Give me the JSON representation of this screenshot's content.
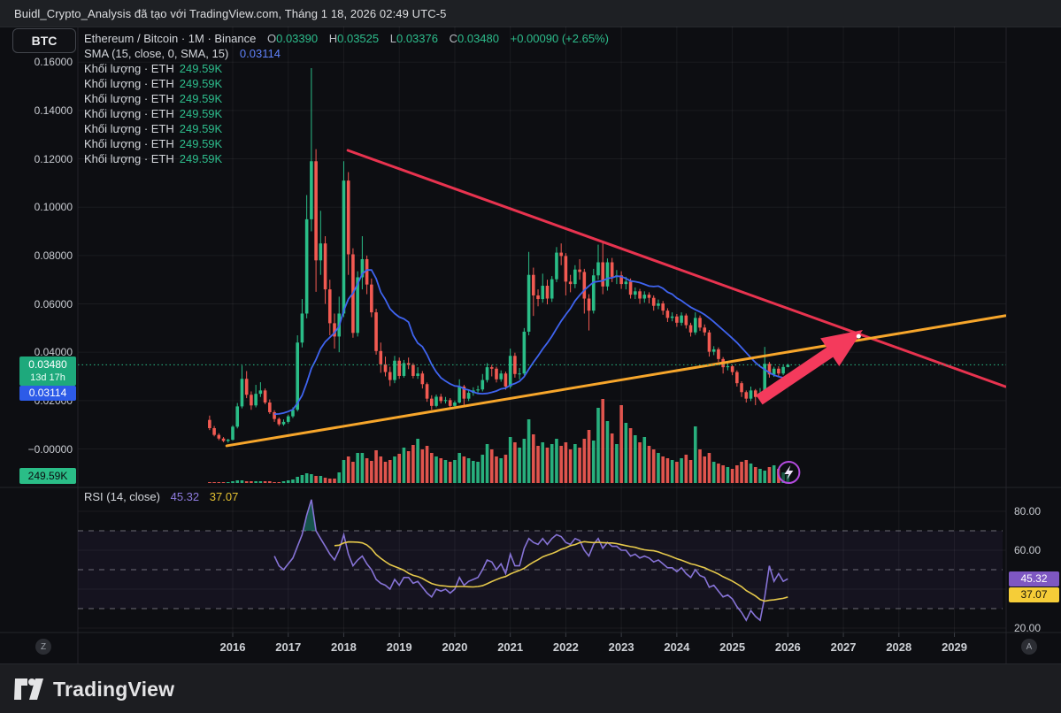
{
  "attribution": "Buidl_Crypto_Analysis đã tạo với TradingView.com, Tháng 1 18, 2026 02:49 UTC-5",
  "toolbar": {
    "symbol_button": "BTC"
  },
  "legend": {
    "symbol": "Ethereum / Bitcoin · 1M · Binance",
    "o_label": "O",
    "o_value": "0.03390",
    "h_label": "H",
    "h_value": "0.03525",
    "l_label": "L",
    "l_value": "0.03376",
    "c_label": "C",
    "c_value": "0.03480",
    "change": "+0.00090 (+2.65%)",
    "sma_label": "SMA (15, close, 0, SMA, 15)",
    "sma_value": "0.03114",
    "volume_rows": [
      {
        "label": "Khối lượng · ETH",
        "value": "249.59K"
      },
      {
        "label": "Khối lượng · ETH",
        "value": "249.59K"
      },
      {
        "label": "Khối lượng · ETH",
        "value": "249.59K"
      },
      {
        "label": "Khối lượng · ETH",
        "value": "249.59K"
      },
      {
        "label": "Khối lượng · ETH",
        "value": "249.59K"
      },
      {
        "label": "Khối lượng · ETH",
        "value": "249.59K"
      },
      {
        "label": "Khối lượng · ETH",
        "value": "249.59K"
      }
    ]
  },
  "rsi_legend": {
    "label": "RSI (14, close)",
    "rsi_value": "45.32",
    "ma_value": "37.07"
  },
  "price_axis": {
    "labels": [
      "0.16000",
      "0.14000",
      "0.12000",
      "0.10000",
      "0.08000",
      "0.06000",
      "0.04000",
      "0.02000",
      "−0.00000"
    ],
    "tick_prices": [
      0.16,
      0.14,
      0.12,
      0.1,
      0.08,
      0.06,
      0.04,
      0.02,
      0.0
    ],
    "price_badge": {
      "price": "0.03480",
      "countdown": "13d 17h"
    },
    "sma_badge": "0.03114",
    "volume_badge": "249.59K"
  },
  "rsi_axis": {
    "labels": [
      {
        "value": 80,
        "text": "80.00"
      },
      {
        "value": 60,
        "text": "60.00"
      },
      {
        "value": 20,
        "text": "20.00"
      }
    ],
    "rsi_badge": "45.32",
    "ma_badge": "37.07"
  },
  "time_axis": {
    "years": [
      "2016",
      "2017",
      "2018",
      "2019",
      "2020",
      "2021",
      "2022",
      "2023",
      "2024",
      "2025",
      "2026",
      "2027",
      "2028",
      "2029"
    ]
  },
  "buttons": {
    "zoom_out": "Z",
    "auto": "A"
  },
  "footer": {
    "brand": "TradingView"
  },
  "colors": {
    "up": "#2abd87",
    "down": "#f25a52",
    "sma": "#3f64f0",
    "trend_red": "#e8334f",
    "trend_orange": "#f7a62b",
    "rsi": "#8673d6",
    "rsi_ma": "#e5c84b",
    "rsi_fill": "#22ab94",
    "price_line": "#2abd87",
    "arrow": "#f43a5c",
    "grid": "rgba(255,255,255,0.055)",
    "dashed": "rgba(220,222,230,0.45)",
    "band": "rgba(126,87,194,0.08)",
    "lightning": "#b44be0"
  },
  "chart_data": {
    "type": "candlestick",
    "title": "Ethereum / Bitcoin monthly with volume, SMA(15), RSI(14), trendlines and arrow annotation",
    "symbol": "ETH/BTC",
    "interval": "1M",
    "exchange": "Binance",
    "start_month": "2015-08",
    "ylim_price": [
      0.0,
      0.16
    ],
    "ylim_rsi": [
      20,
      80
    ],
    "ohlc": [
      [
        0.012,
        0.0138,
        0.0078,
        0.0086
      ],
      [
        0.0086,
        0.0095,
        0.0052,
        0.0058
      ],
      [
        0.0058,
        0.0065,
        0.0036,
        0.0043
      ],
      [
        0.0043,
        0.0049,
        0.0028,
        0.0033
      ],
      [
        0.0033,
        0.0042,
        0.0026,
        0.0038
      ],
      [
        0.0038,
        0.0098,
        0.0035,
        0.0092
      ],
      [
        0.0092,
        0.019,
        0.0085,
        0.0176
      ],
      [
        0.0176,
        0.0345,
        0.0168,
        0.029
      ],
      [
        0.029,
        0.0322,
        0.021,
        0.0224
      ],
      [
        0.0224,
        0.0238,
        0.0162,
        0.018
      ],
      [
        0.018,
        0.0265,
        0.0172,
        0.0228
      ],
      [
        0.0228,
        0.0276,
        0.0215,
        0.0242
      ],
      [
        0.0242,
        0.025,
        0.0185,
        0.0192
      ],
      [
        0.0192,
        0.0205,
        0.0145,
        0.0152
      ],
      [
        0.0152,
        0.016,
        0.0112,
        0.0124
      ],
      [
        0.0124,
        0.013,
        0.0095,
        0.0102
      ],
      [
        0.0102,
        0.0122,
        0.0096,
        0.0112
      ],
      [
        0.0112,
        0.0142,
        0.0105,
        0.0135
      ],
      [
        0.0135,
        0.0172,
        0.0128,
        0.0162
      ],
      [
        0.0162,
        0.047,
        0.0155,
        0.044
      ],
      [
        0.044,
        0.062,
        0.042,
        0.056
      ],
      [
        0.056,
        0.105,
        0.054,
        0.095
      ],
      [
        0.095,
        0.1575,
        0.09,
        0.119
      ],
      [
        0.119,
        0.124,
        0.065,
        0.078
      ],
      [
        0.078,
        0.0985,
        0.072,
        0.085
      ],
      [
        0.085,
        0.088,
        0.06,
        0.066
      ],
      [
        0.066,
        0.07,
        0.047,
        0.052
      ],
      [
        0.052,
        0.056,
        0.0415,
        0.0465
      ],
      [
        0.0465,
        0.063,
        0.04,
        0.056
      ],
      [
        0.056,
        0.119,
        0.0545,
        0.111
      ],
      [
        0.111,
        0.1145,
        0.072,
        0.0805
      ],
      [
        0.0805,
        0.083,
        0.046,
        0.048
      ],
      [
        0.048,
        0.0735,
        0.0465,
        0.071
      ],
      [
        0.071,
        0.088,
        0.066,
        0.0785
      ],
      [
        0.0785,
        0.08,
        0.064,
        0.068
      ],
      [
        0.068,
        0.0705,
        0.0545,
        0.0565
      ],
      [
        0.0565,
        0.058,
        0.039,
        0.0405
      ],
      [
        0.0405,
        0.044,
        0.0315,
        0.035
      ],
      [
        0.035,
        0.0382,
        0.03,
        0.0318
      ],
      [
        0.0318,
        0.034,
        0.026,
        0.0285
      ],
      [
        0.0285,
        0.0385,
        0.0272,
        0.0365
      ],
      [
        0.0365,
        0.0378,
        0.029,
        0.0302
      ],
      [
        0.0302,
        0.0368,
        0.0295,
        0.0355
      ],
      [
        0.0355,
        0.0378,
        0.033,
        0.0348
      ],
      [
        0.0348,
        0.0355,
        0.0292,
        0.0302
      ],
      [
        0.0302,
        0.0338,
        0.029,
        0.0312
      ],
      [
        0.0312,
        0.0322,
        0.025,
        0.0268
      ],
      [
        0.0268,
        0.0275,
        0.0195,
        0.0208
      ],
      [
        0.0208,
        0.0222,
        0.0162,
        0.0178
      ],
      [
        0.0178,
        0.0225,
        0.0172,
        0.0216
      ],
      [
        0.0216,
        0.0228,
        0.0188,
        0.0198
      ],
      [
        0.0198,
        0.0215,
        0.0188,
        0.0202
      ],
      [
        0.0202,
        0.021,
        0.0168,
        0.0178
      ],
      [
        0.0178,
        0.02,
        0.0172,
        0.0192
      ],
      [
        0.0192,
        0.0288,
        0.0188,
        0.0258
      ],
      [
        0.0258,
        0.0265,
        0.0182,
        0.0208
      ],
      [
        0.0208,
        0.0245,
        0.0198,
        0.0232
      ],
      [
        0.0232,
        0.0255,
        0.022,
        0.0242
      ],
      [
        0.0242,
        0.0262,
        0.0228,
        0.0246
      ],
      [
        0.0246,
        0.031,
        0.0238,
        0.0285
      ],
      [
        0.0285,
        0.0355,
        0.0275,
        0.0338
      ],
      [
        0.0338,
        0.0348,
        0.03,
        0.0332
      ],
      [
        0.0332,
        0.034,
        0.0275,
        0.0288
      ],
      [
        0.0288,
        0.0325,
        0.0278,
        0.0312
      ],
      [
        0.0312,
        0.032,
        0.0245,
        0.0258
      ],
      [
        0.0258,
        0.0415,
        0.025,
        0.0385
      ],
      [
        0.0385,
        0.0398,
        0.0295,
        0.031
      ],
      [
        0.031,
        0.0335,
        0.0288,
        0.0312
      ],
      [
        0.0312,
        0.05,
        0.0305,
        0.0485
      ],
      [
        0.0485,
        0.0815,
        0.047,
        0.072
      ],
      [
        0.072,
        0.075,
        0.055,
        0.0635
      ],
      [
        0.0635,
        0.066,
        0.059,
        0.062
      ],
      [
        0.062,
        0.0725,
        0.0605,
        0.0675
      ],
      [
        0.0675,
        0.07,
        0.0598,
        0.0622
      ],
      [
        0.0622,
        0.0715,
        0.0608,
        0.0702
      ],
      [
        0.0702,
        0.0835,
        0.069,
        0.0812
      ],
      [
        0.0812,
        0.085,
        0.076,
        0.0798
      ],
      [
        0.0798,
        0.081,
        0.0635,
        0.0692
      ],
      [
        0.0692,
        0.072,
        0.0648,
        0.0682
      ],
      [
        0.0682,
        0.076,
        0.0665,
        0.0742
      ],
      [
        0.0742,
        0.0785,
        0.07,
        0.0732
      ],
      [
        0.0732,
        0.0745,
        0.056,
        0.0622
      ],
      [
        0.0622,
        0.064,
        0.049,
        0.0572
      ],
      [
        0.0572,
        0.0745,
        0.056,
        0.0718
      ],
      [
        0.0718,
        0.0845,
        0.07,
        0.0772
      ],
      [
        0.0772,
        0.0855,
        0.064,
        0.0672
      ],
      [
        0.0672,
        0.0788,
        0.0655,
        0.0772
      ],
      [
        0.0772,
        0.079,
        0.069,
        0.0712
      ],
      [
        0.0712,
        0.074,
        0.0682,
        0.0718
      ],
      [
        0.0718,
        0.0735,
        0.0662,
        0.0682
      ],
      [
        0.0682,
        0.0712,
        0.066,
        0.0692
      ],
      [
        0.0692,
        0.0705,
        0.0622,
        0.0638
      ],
      [
        0.0638,
        0.0668,
        0.062,
        0.0652
      ],
      [
        0.0652,
        0.0662,
        0.06,
        0.0622
      ],
      [
        0.0622,
        0.0652,
        0.0605,
        0.0638
      ],
      [
        0.0638,
        0.0648,
        0.0602,
        0.0625
      ],
      [
        0.0625,
        0.0635,
        0.0572,
        0.0592
      ],
      [
        0.0592,
        0.0618,
        0.0578,
        0.0602
      ],
      [
        0.0602,
        0.0612,
        0.0555,
        0.0572
      ],
      [
        0.0572,
        0.0582,
        0.0525,
        0.0542
      ],
      [
        0.0542,
        0.0565,
        0.0528,
        0.0548
      ],
      [
        0.0548,
        0.0558,
        0.0505,
        0.0522
      ],
      [
        0.0522,
        0.0565,
        0.051,
        0.0552
      ],
      [
        0.0552,
        0.056,
        0.0498,
        0.0512
      ],
      [
        0.0512,
        0.0522,
        0.0465,
        0.0482
      ],
      [
        0.0482,
        0.0565,
        0.0472,
        0.0542
      ],
      [
        0.0542,
        0.0552,
        0.0488,
        0.0502
      ],
      [
        0.0502,
        0.0515,
        0.0468,
        0.0482
      ],
      [
        0.0482,
        0.0492,
        0.0382,
        0.0402
      ],
      [
        0.0402,
        0.0425,
        0.0388,
        0.0412
      ],
      [
        0.0412,
        0.042,
        0.036,
        0.0372
      ],
      [
        0.0372,
        0.038,
        0.0312,
        0.0338
      ],
      [
        0.0338,
        0.0355,
        0.0325,
        0.0342
      ],
      [
        0.0342,
        0.0348,
        0.0305,
        0.0318
      ],
      [
        0.0318,
        0.0325,
        0.0258,
        0.0272
      ],
      [
        0.0272,
        0.028,
        0.0215,
        0.0235
      ],
      [
        0.0235,
        0.0242,
        0.0192,
        0.0208
      ],
      [
        0.0208,
        0.0258,
        0.0198,
        0.0242
      ],
      [
        0.0242,
        0.0248,
        0.0181,
        0.0215
      ],
      [
        0.0215,
        0.0252,
        0.0205,
        0.0232
      ],
      [
        0.0232,
        0.0422,
        0.0225,
        0.0352
      ],
      [
        0.0352,
        0.036,
        0.0295,
        0.0308
      ],
      [
        0.0308,
        0.034,
        0.0298,
        0.0332
      ],
      [
        0.0332,
        0.0342,
        0.0302,
        0.0312
      ],
      [
        0.0312,
        0.0348,
        0.0305,
        0.0339
      ],
      [
        0.0339,
        0.03525,
        0.03376,
        0.0348
      ]
    ],
    "volume_rel": [
      1,
      1,
      1,
      1,
      1,
      2,
      3,
      3,
      2,
      2,
      2,
      2,
      2,
      2,
      1,
      1,
      2,
      3,
      4,
      7,
      9,
      11,
      10,
      8,
      8,
      6,
      5,
      5,
      12,
      26,
      30,
      24,
      34,
      34,
      28,
      25,
      37,
      30,
      24,
      26,
      30,
      33,
      40,
      36,
      43,
      50,
      38,
      42,
      34,
      30,
      28,
      26,
      24,
      26,
      34,
      30,
      28,
      25,
      24,
      32,
      44,
      38,
      30,
      28,
      32,
      52,
      46,
      40,
      50,
      72,
      55,
      42,
      46,
      40,
      44,
      50,
      42,
      46,
      38,
      44,
      40,
      50,
      60,
      48,
      85,
      95,
      70,
      56,
      44,
      88,
      68,
      62,
      54,
      46,
      52,
      42,
      38,
      34,
      30,
      28,
      26,
      24,
      28,
      32,
      26,
      64,
      38,
      30,
      34,
      24,
      22,
      20,
      18,
      16,
      20,
      24,
      26,
      22,
      18,
      16,
      14,
      18,
      20,
      16,
      12,
      9
    ],
    "sma_period": 15,
    "rsi": {
      "period": 14,
      "start_index": 14,
      "ma_period": 14,
      "values": [
        57,
        52,
        50,
        53,
        56,
        62,
        68,
        78,
        86,
        70,
        66,
        62,
        58,
        55,
        60,
        68,
        58,
        52,
        55,
        57,
        53,
        50,
        45,
        43,
        42,
        40,
        45,
        42,
        46,
        46,
        43,
        44,
        41,
        38,
        36,
        40,
        39,
        40,
        38,
        40,
        46,
        42,
        44,
        45,
        46,
        50,
        55,
        54,
        50,
        53,
        48,
        58,
        52,
        52,
        61,
        66,
        64,
        63,
        66,
        63,
        66,
        68,
        67,
        64,
        63,
        66,
        65,
        60,
        57,
        63,
        66,
        61,
        64,
        62,
        62,
        60,
        60,
        57,
        58,
        56,
        57,
        56,
        54,
        55,
        53,
        51,
        51,
        49,
        51,
        48,
        46,
        50,
        47,
        46,
        41,
        42,
        39,
        36,
        37,
        35,
        31,
        28,
        24,
        29,
        26,
        24,
        36,
        52,
        44,
        48,
        44,
        45.32
      ],
      "dashed_levels": [
        70,
        50,
        30
      ],
      "band": [
        30,
        70
      ],
      "last_rsi": 45.32,
      "last_ma": 37.07
    },
    "price_line_value": 0.0348,
    "trendlines": [
      {
        "name": "descending-resistance",
        "m1": 29.9,
        "p1": 0.1235,
        "m2": 172,
        "p2": 0.0258,
        "color_key": "trend_red"
      },
      {
        "name": "ascending-support",
        "m1": 3.7,
        "p1": 0.0013,
        "m2": 172,
        "p2": 0.0551,
        "color_key": "trend_orange"
      }
    ],
    "arrow": {
      "tail_m": 118.8,
      "tail_p": 0.0203,
      "tip_m": 141.2,
      "tip_p": 0.0492
    },
    "crossing_dot": {
      "m": 140.3,
      "p": 0.0466
    },
    "lightning_marker": {
      "m": 125.2,
      "p": -0.0097
    }
  }
}
